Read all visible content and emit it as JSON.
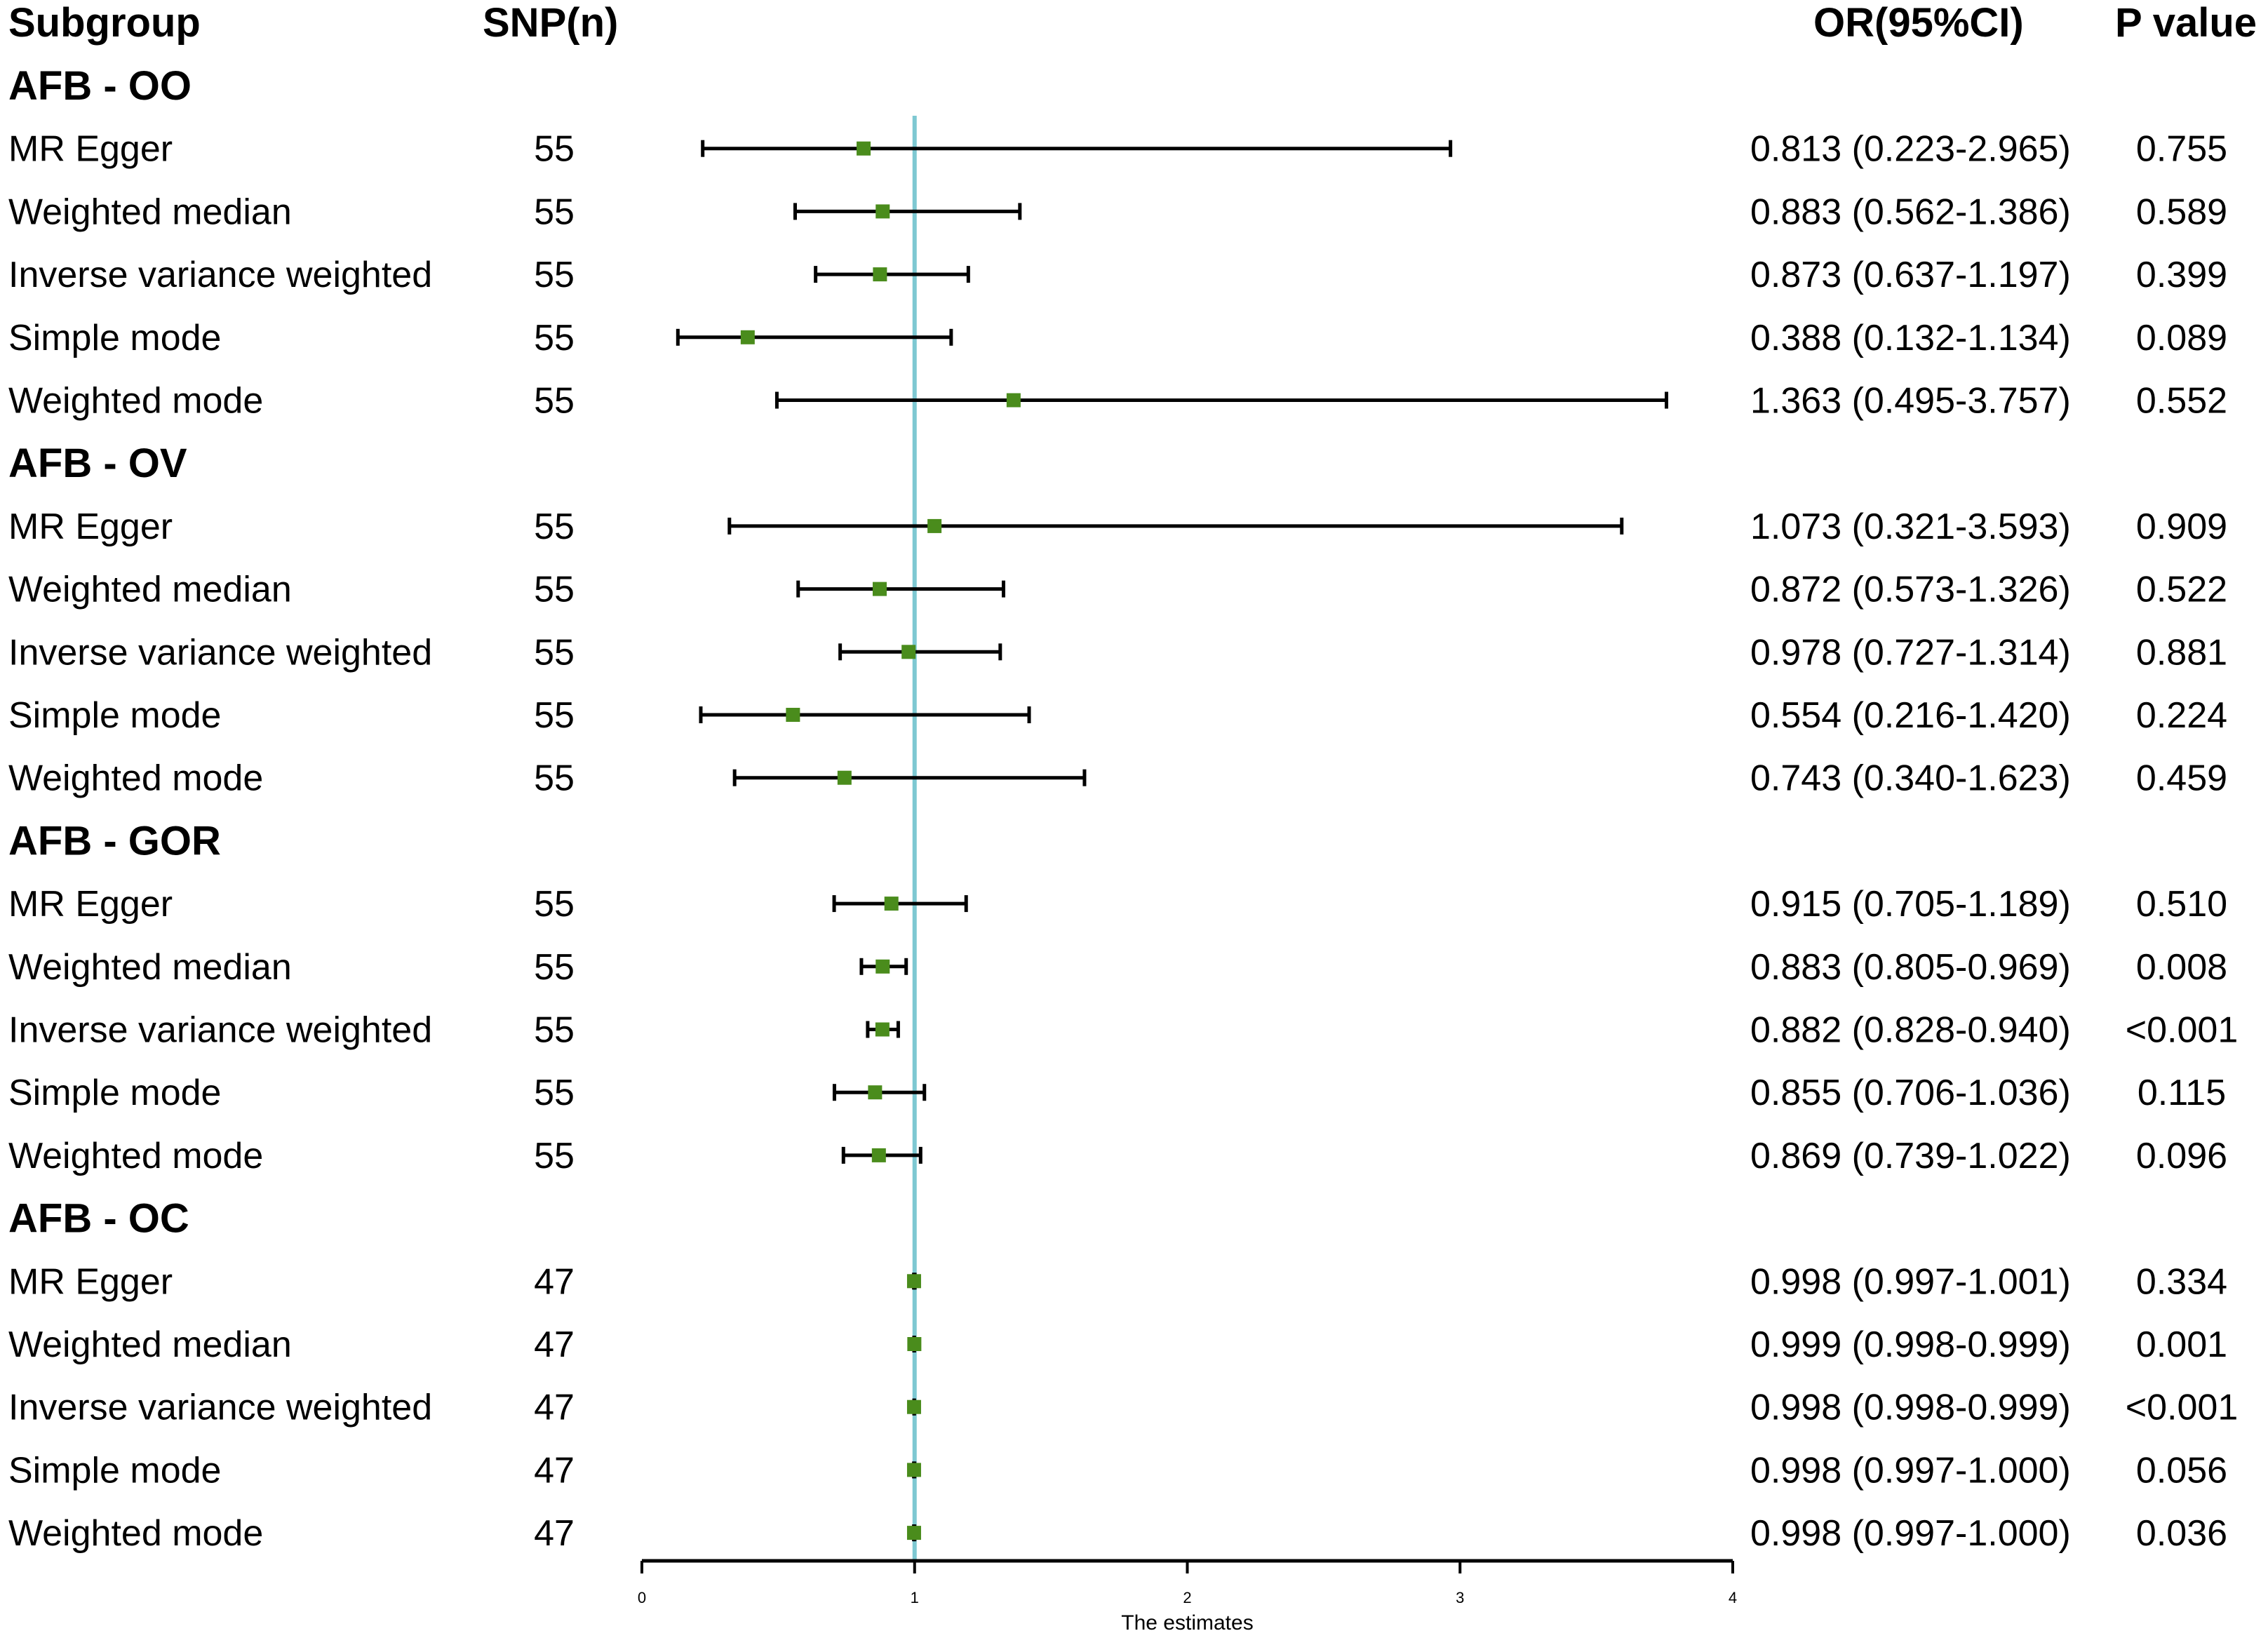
{
  "chart_data": {
    "type": "forest",
    "columns": {
      "subgroup": "Subgroup",
      "snp": "SNP(n)",
      "or": "OR(95%CI)",
      "p": "P value"
    },
    "xlabel": "The estimates",
    "xlim": [
      0,
      4
    ],
    "xticks": [
      "0",
      "1",
      "2",
      "3",
      "4"
    ],
    "reference_line": 1,
    "colors": {
      "marker": "#4a8c1c",
      "reference": "#7ec8d2",
      "line": "#000000"
    },
    "groups": [
      {
        "name": "AFB - OO",
        "rows": [
          {
            "method": "MR Egger",
            "snp": "55",
            "or": 0.813,
            "lo": 0.223,
            "hi": 2.965,
            "or_text": "0.813 (0.223-2.965)",
            "p": "0.755"
          },
          {
            "method": "Weighted median",
            "snp": "55",
            "or": 0.883,
            "lo": 0.562,
            "hi": 1.386,
            "or_text": "0.883 (0.562-1.386)",
            "p": "0.589"
          },
          {
            "method": "Inverse variance weighted",
            "snp": "55",
            "or": 0.873,
            "lo": 0.637,
            "hi": 1.197,
            "or_text": "0.873 (0.637-1.197)",
            "p": "0.399"
          },
          {
            "method": "Simple mode",
            "snp": "55",
            "or": 0.388,
            "lo": 0.132,
            "hi": 1.134,
            "or_text": "0.388 (0.132-1.134)",
            "p": "0.089"
          },
          {
            "method": "Weighted mode",
            "snp": "55",
            "or": 1.363,
            "lo": 0.495,
            "hi": 3.757,
            "or_text": "1.363 (0.495-3.757)",
            "p": "0.552"
          }
        ]
      },
      {
        "name": "AFB - OV",
        "rows": [
          {
            "method": "MR Egger",
            "snp": "55",
            "or": 1.073,
            "lo": 0.321,
            "hi": 3.593,
            "or_text": "1.073 (0.321-3.593)",
            "p": "0.909"
          },
          {
            "method": "Weighted median",
            "snp": "55",
            "or": 0.872,
            "lo": 0.573,
            "hi": 1.326,
            "or_text": "0.872 (0.573-1.326)",
            "p": "0.522"
          },
          {
            "method": "Inverse variance weighted",
            "snp": "55",
            "or": 0.978,
            "lo": 0.727,
            "hi": 1.314,
            "or_text": "0.978 (0.727-1.314)",
            "p": "0.881"
          },
          {
            "method": "Simple mode",
            "snp": "55",
            "or": 0.554,
            "lo": 0.216,
            "hi": 1.42,
            "or_text": "0.554 (0.216-1.420)",
            "p": "0.224"
          },
          {
            "method": "Weighted mode",
            "snp": "55",
            "or": 0.743,
            "lo": 0.34,
            "hi": 1.623,
            "or_text": "0.743 (0.340-1.623)",
            "p": "0.459"
          }
        ]
      },
      {
        "name": "AFB - GOR",
        "rows": [
          {
            "method": "MR Egger",
            "snp": "55",
            "or": 0.915,
            "lo": 0.705,
            "hi": 1.189,
            "or_text": "0.915 (0.705-1.189)",
            "p": "0.510"
          },
          {
            "method": "Weighted median",
            "snp": "55",
            "or": 0.883,
            "lo": 0.805,
            "hi": 0.969,
            "or_text": "0.883 (0.805-0.969)",
            "p": "0.008"
          },
          {
            "method": "Inverse variance weighted",
            "snp": "55",
            "or": 0.882,
            "lo": 0.828,
            "hi": 0.94,
            "or_text": "0.882 (0.828-0.940)",
            "p": "<0.001"
          },
          {
            "method": "Simple mode",
            "snp": "55",
            "or": 0.855,
            "lo": 0.706,
            "hi": 1.036,
            "or_text": "0.855 (0.706-1.036)",
            "p": "0.115"
          },
          {
            "method": "Weighted mode",
            "snp": "55",
            "or": 0.869,
            "lo": 0.739,
            "hi": 1.022,
            "or_text": "0.869 (0.739-1.022)",
            "p": "0.096"
          }
        ]
      },
      {
        "name": "AFB - OC",
        "rows": [
          {
            "method": "MR Egger",
            "snp": "47",
            "or": 0.998,
            "lo": 0.997,
            "hi": 1.001,
            "or_text": "0.998 (0.997-1.001)",
            "p": "0.334"
          },
          {
            "method": "Weighted median",
            "snp": "47",
            "or": 0.999,
            "lo": 0.998,
            "hi": 0.999,
            "or_text": "0.999 (0.998-0.999)",
            "p": "0.001"
          },
          {
            "method": "Inverse variance weighted",
            "snp": "47",
            "or": 0.998,
            "lo": 0.998,
            "hi": 0.999,
            "or_text": "0.998 (0.998-0.999)",
            "p": "<0.001"
          },
          {
            "method": "Simple mode",
            "snp": "47",
            "or": 0.998,
            "lo": 0.997,
            "hi": 1.0,
            "or_text": "0.998 (0.997-1.000)",
            "p": "0.056"
          },
          {
            "method": "Weighted mode",
            "snp": "47",
            "or": 0.998,
            "lo": 0.997,
            "hi": 1.0,
            "or_text": "0.998 (0.997-1.000)",
            "p": "0.036"
          }
        ]
      }
    ]
  }
}
